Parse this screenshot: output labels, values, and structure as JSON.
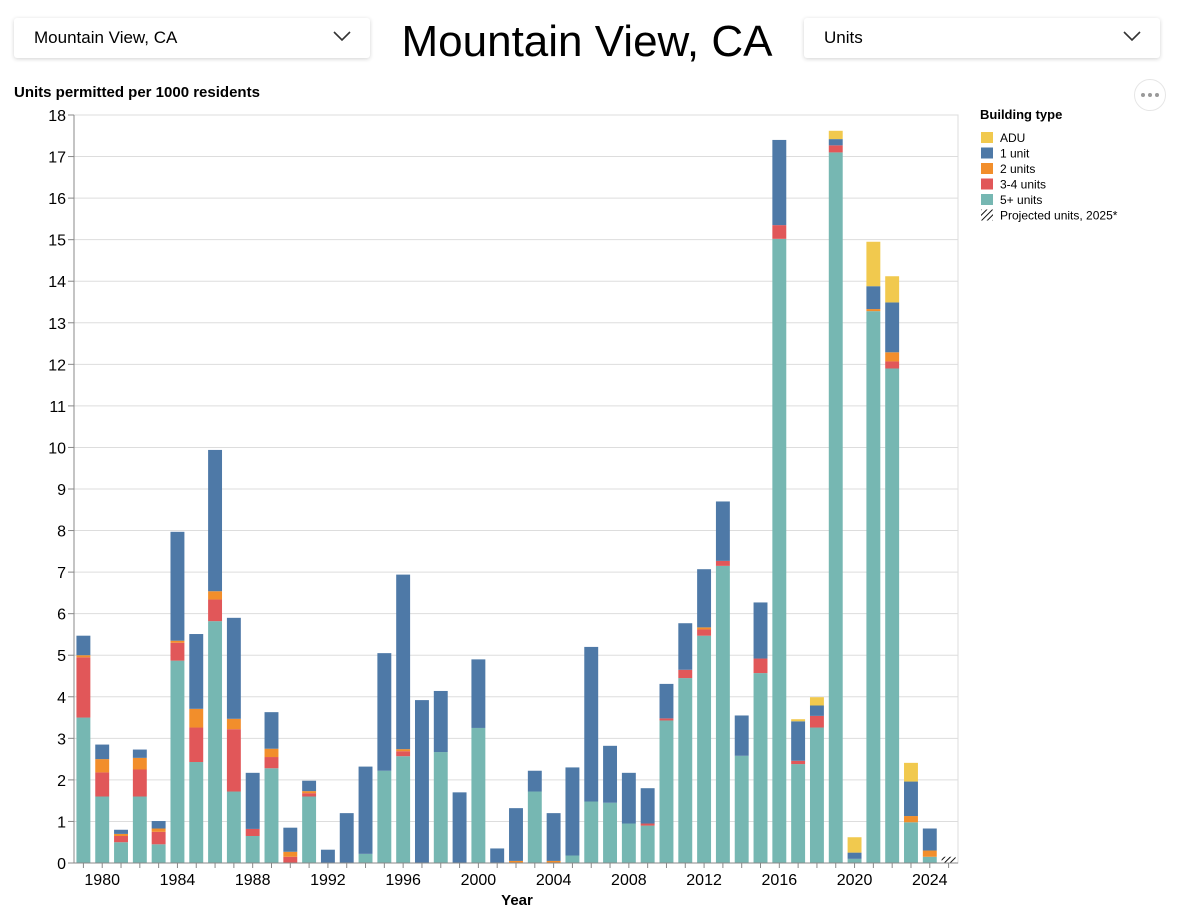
{
  "city_select": {
    "value": "Mountain View, CA"
  },
  "title": "Mountain View, CA",
  "metric_select": {
    "value": "Units"
  },
  "more_button": {
    "icon": "ellipsis-icon"
  },
  "colors": {
    "ADU": "#f1c94e",
    "1 unit": "#4e79a7",
    "2 units": "#f28e2b",
    "3-4 units": "#e15759",
    "5+ units": "#76b7b2",
    "grid": "#dddddd",
    "axis": "#888888"
  },
  "chart_data": {
    "type": "bar",
    "stacked": true,
    "title": "Units permitted per 1000 residents",
    "xlabel": "Year",
    "ylabel": "Units permitted per 1000 residents",
    "ylim": [
      0,
      18
    ],
    "yticks": [
      0,
      1,
      2,
      3,
      4,
      5,
      6,
      7,
      8,
      9,
      10,
      11,
      12,
      13,
      14,
      15,
      16,
      17,
      18
    ],
    "xticks": [
      1980,
      1984,
      1988,
      1992,
      1996,
      2000,
      2004,
      2008,
      2012,
      2016,
      2020,
      2024
    ],
    "legend": {
      "title": "Building type",
      "position": "top-right",
      "entries": [
        "ADU",
        "1 unit",
        "2 units",
        "3-4 units",
        "5+ units",
        "Projected units, 2025*"
      ]
    },
    "categories": [
      1979,
      1980,
      1981,
      1982,
      1983,
      1984,
      1985,
      1986,
      1987,
      1988,
      1989,
      1990,
      1991,
      1992,
      1993,
      1994,
      1995,
      1996,
      1997,
      1998,
      1999,
      2000,
      2001,
      2002,
      2003,
      2004,
      2005,
      2006,
      2007,
      2008,
      2009,
      2010,
      2011,
      2012,
      2013,
      2014,
      2015,
      2016,
      2017,
      2018,
      2019,
      2020,
      2021,
      2022,
      2023,
      2024,
      2025
    ],
    "series": [
      {
        "name": "5+ units",
        "values": [
          3.5,
          1.6,
          0.5,
          1.6,
          0.45,
          4.87,
          2.43,
          5.82,
          1.72,
          0.65,
          2.28,
          0,
          1.6,
          0,
          0,
          0.22,
          2.22,
          2.57,
          0,
          2.67,
          0,
          3.25,
          0,
          0,
          1.72,
          0,
          0.18,
          1.48,
          1.45,
          0.95,
          0.9,
          3.43,
          4.45,
          5.47,
          7.15,
          2.58,
          4.57,
          15.02,
          2.38,
          3.26,
          17.1,
          0.1,
          13.28,
          11.9,
          0.98,
          0.15,
          0
        ]
      },
      {
        "name": "3-4 units",
        "values": [
          1.45,
          0.58,
          0.15,
          0.65,
          0.3,
          0.43,
          0.83,
          0.52,
          1.5,
          0.17,
          0.27,
          0.15,
          0.08,
          0,
          0,
          0,
          0,
          0.12,
          0,
          0,
          0,
          0,
          0,
          0,
          0,
          0,
          0,
          0,
          0,
          0,
          0.05,
          0.05,
          0.2,
          0.15,
          0.12,
          0,
          0.35,
          0.33,
          0.08,
          0.28,
          0.17,
          0,
          0,
          0.17,
          0,
          0,
          0
        ]
      },
      {
        "name": "2 units",
        "values": [
          0.05,
          0.32,
          0.05,
          0.28,
          0.08,
          0.05,
          0.45,
          0.2,
          0.25,
          0,
          0.2,
          0.12,
          0.05,
          0,
          0,
          0,
          0,
          0.05,
          0,
          0,
          0,
          0,
          0,
          0.05,
          0,
          0.05,
          0,
          0,
          0,
          0,
          0,
          0,
          0,
          0.05,
          0,
          0,
          0,
          0,
          0,
          0,
          0,
          0,
          0.05,
          0.22,
          0.15,
          0.15,
          0
        ]
      },
      {
        "name": "1 unit",
        "values": [
          0.47,
          0.35,
          0.1,
          0.2,
          0.18,
          2.62,
          1.8,
          3.4,
          2.43,
          1.35,
          0.88,
          0.58,
          0.25,
          0.32,
          1.2,
          2.1,
          2.83,
          4.2,
          3.92,
          1.47,
          1.7,
          1.65,
          0.35,
          1.27,
          0.5,
          1.15,
          2.12,
          3.72,
          1.37,
          1.22,
          0.85,
          0.83,
          1.12,
          1.4,
          1.43,
          0.97,
          1.35,
          2.05,
          0.95,
          0.25,
          0.15,
          0.15,
          0.55,
          1.2,
          0.83,
          0.53,
          0
        ]
      },
      {
        "name": "ADU",
        "values": [
          0,
          0,
          0,
          0,
          0,
          0,
          0,
          0,
          0,
          0,
          0,
          0,
          0,
          0,
          0,
          0,
          0,
          0,
          0,
          0,
          0,
          0,
          0,
          0,
          0,
          0,
          0,
          0,
          0,
          0,
          0,
          0,
          0,
          0,
          0,
          0,
          0,
          0,
          0.05,
          0.2,
          0.2,
          0.37,
          1.07,
          0.63,
          0.45,
          0,
          0
        ]
      },
      {
        "name": "Projected units, 2025*",
        "values": [
          0,
          0,
          0,
          0,
          0,
          0,
          0,
          0,
          0,
          0,
          0,
          0,
          0,
          0,
          0,
          0,
          0,
          0,
          0,
          0,
          0,
          0,
          0,
          0,
          0,
          0,
          0,
          0,
          0,
          0,
          0,
          0,
          0,
          0,
          0,
          0,
          0,
          0,
          0,
          0,
          0,
          0,
          0,
          0,
          0,
          0,
          0.15
        ]
      }
    ]
  }
}
